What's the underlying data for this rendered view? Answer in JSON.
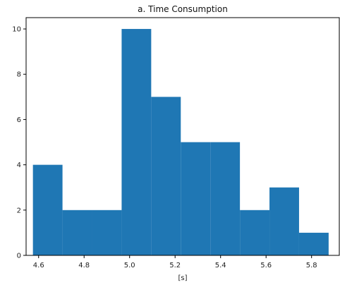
{
  "chart_data": {
    "type": "bar",
    "title": "a. Time Consumption",
    "xlabel": "[s]",
    "ylabel": "",
    "bar_color": "#1f77b4",
    "xlim": [
      4.545,
      5.925
    ],
    "ylim": [
      0,
      10.5
    ],
    "x_ticks": [
      4.6,
      4.8,
      5.0,
      5.2,
      5.4,
      5.6,
      5.8
    ],
    "x_tick_labels": [
      "4.6",
      "4.8",
      "5.0",
      "5.2",
      "5.4",
      "5.6",
      "5.8"
    ],
    "y_ticks": [
      0,
      2,
      4,
      6,
      8,
      10
    ],
    "y_tick_labels": [
      "0",
      "2",
      "4",
      "6",
      "8",
      "10"
    ],
    "bins": [
      {
        "x0": 4.575,
        "x1": 4.705,
        "count": 4
      },
      {
        "x0": 4.705,
        "x1": 4.835,
        "count": 2
      },
      {
        "x0": 4.835,
        "x1": 4.965,
        "count": 2
      },
      {
        "x0": 4.965,
        "x1": 5.095,
        "count": 10
      },
      {
        "x0": 5.095,
        "x1": 5.225,
        "count": 7
      },
      {
        "x0": 5.225,
        "x1": 5.355,
        "count": 5
      },
      {
        "x0": 5.355,
        "x1": 5.485,
        "count": 5
      },
      {
        "x0": 5.485,
        "x1": 5.615,
        "count": 2
      },
      {
        "x0": 5.615,
        "x1": 5.745,
        "count": 3
      },
      {
        "x0": 5.745,
        "x1": 5.875,
        "count": 1
      }
    ],
    "grid": false,
    "legend": "none"
  }
}
